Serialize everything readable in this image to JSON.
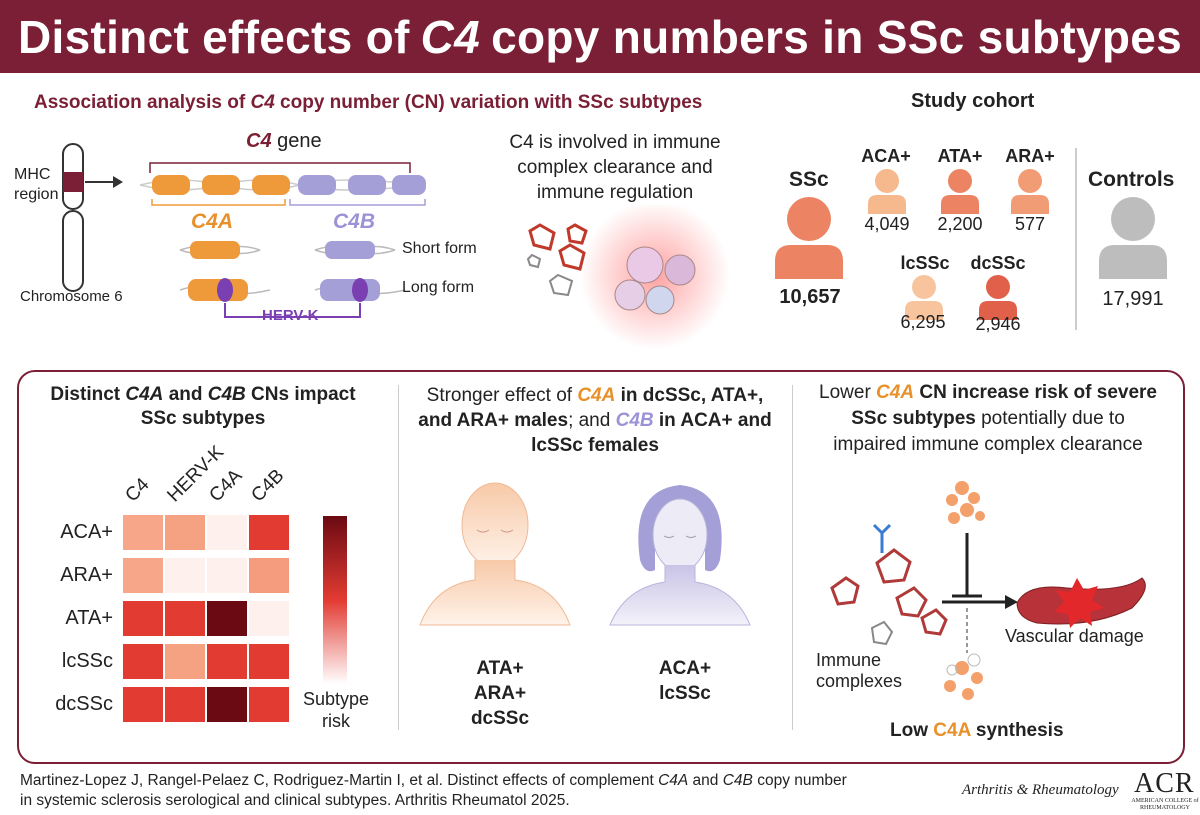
{
  "banner": {
    "title_pre": "Distinct effects of",
    "title_gene": "C4",
    "title_post": "copy numbers in SSc subtypes"
  },
  "top_left": {
    "title_pre": "Association analysis of",
    "title_gene": "C4",
    "title_post": "copy number (CN) variation with SSc subtypes",
    "mhc_label": "MHC\nregion",
    "chromosome_label": "Chromosome 6",
    "gene_label_italic": "C4",
    "gene_label_rest": "gene",
    "c4a_label": "C4A",
    "c4b_label": "C4B",
    "short_form": "Short form",
    "long_form": "Long form",
    "herv_label": "HERV-K"
  },
  "middle_top": {
    "text": "C4 is involved in immune complex clearance and immune regulation"
  },
  "cohort": {
    "title": "Study cohort",
    "ssc": {
      "label": "SSc",
      "count": "10,657"
    },
    "groups": [
      {
        "label": "ACA+",
        "count": "4,049",
        "color": "#f6b98e"
      },
      {
        "label": "ATA+",
        "count": "2,200",
        "color": "#ec8463"
      },
      {
        "label": "ARA+",
        "count": "577",
        "color": "#f29c75"
      },
      {
        "label": "lcSSc",
        "count": "6,295",
        "color": "#f8c49e"
      },
      {
        "label": "dcSSc",
        "count": "2,946",
        "color": "#e0604a"
      }
    ],
    "controls": {
      "label": "Controls",
      "count": "17,991"
    }
  },
  "panel1": {
    "title_a": "Distinct",
    "title_c4a": "C4A",
    "title_and": "and",
    "title_c4b": "C4B",
    "title_b": "CNs impact",
    "title_c": "SSc subtypes",
    "legend_label": "Subtype\nrisk"
  },
  "chart_data": {
    "type": "heatmap",
    "columns": [
      "C4",
      "HERV-K",
      "C4A",
      "C4B"
    ],
    "rows": [
      "ACA+",
      "ARA+",
      "ATA+",
      "lcSSc",
      "dcSSc"
    ],
    "legend": "Subtype\nrisk",
    "colors": [
      [
        "#f7a68a",
        "#f4a282",
        "#fdf0ed",
        "#e23b32"
      ],
      [
        "#f7a68a",
        "#fdf0ed",
        "#fdf0ed",
        "#f59b7e"
      ],
      [
        "#e23b32",
        "#e23b32",
        "#6b0a12",
        "#fdf0ed"
      ],
      [
        "#e23b32",
        "#f4a282",
        "#e23b32",
        "#e23b32"
      ],
      [
        "#e23b32",
        "#e23b32",
        "#6b0a12",
        "#e23b32"
      ]
    ]
  },
  "panel2": {
    "title_1": "Stronger effect of",
    "title_c4a": "C4A",
    "title_2": "in dcSSc, ATA+,",
    "title_3": "and ARA+ males",
    "title_4": "; and",
    "title_c4b": "C4B",
    "title_5": "in ACA+ and",
    "title_6": "lcSSc females",
    "male_groups": [
      "ATA+",
      "ARA+",
      "dcSSc"
    ],
    "female_groups": [
      "ACA+",
      "lcSSc"
    ]
  },
  "panel3": {
    "title_1": "Lower",
    "title_c4a": "C4A",
    "title_2": "CN increase risk of severe",
    "title_3": "SSc subtypes",
    "title_4": "potentially due to",
    "title_5": "impaired immune complex clearance",
    "immune_label": "Immune\ncomplexes",
    "vascular_label": "Vascular damage",
    "low_pre": "Low",
    "low_c4a": "C4A",
    "low_post": "synthesis"
  },
  "footer": {
    "ref_line1_pre": "Martinez-Lopez J, Rangel-Pelaez C, Rodriguez-Martin I, et al. Distinct effects of complement",
    "ref_c4a": "C4A",
    "ref_and": "and",
    "ref_c4b": "C4B",
    "ref_line1_post": "copy number",
    "ref_line2": "in systemic sclerosis serological and clinical subtypes. Arthritis Rheumatol 2025.",
    "journal": "Arthritis & Rheumatology",
    "acr": "ACR",
    "acr_sub": "AMERICAN COLLEGE of RHEUMATOLOGY"
  }
}
